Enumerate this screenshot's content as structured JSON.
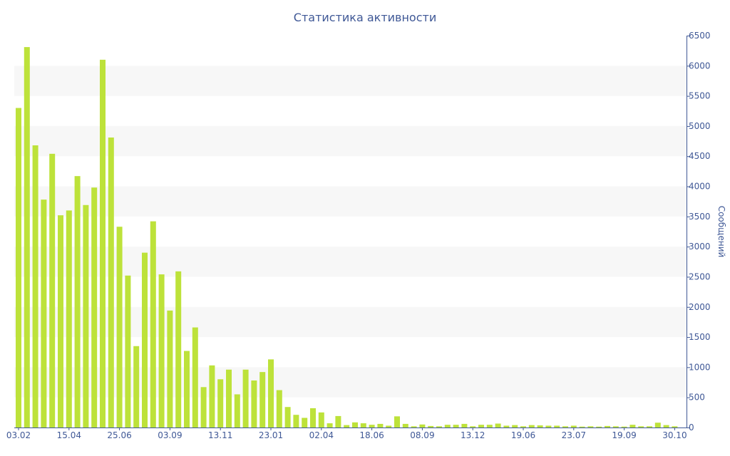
{
  "chart_data": {
    "type": "bar",
    "title": "Статистика активности",
    "xlabel": "",
    "ylabel": "Сообщений",
    "y_axis_side": "right",
    "ylim": [
      0,
      6500
    ],
    "yticks": [
      0,
      500,
      1000,
      1500,
      2000,
      2500,
      3000,
      3500,
      4000,
      4500,
      5000,
      5500,
      6000,
      6500
    ],
    "grid": "alternating horizontal bands",
    "x_tick_labels": [
      "03.02",
      "15.04",
      "25.06",
      "03.09",
      "13.11",
      "23.01",
      "02.04",
      "18.06",
      "08.09",
      "13.12",
      "19.06",
      "23.07",
      "19.09",
      "30.10"
    ],
    "values": [
      5300,
      6310,
      4680,
      3780,
      4540,
      3520,
      3600,
      4170,
      3690,
      3980,
      6100,
      4810,
      3330,
      2520,
      1350,
      2900,
      3420,
      2540,
      1940,
      2590,
      1270,
      1660,
      670,
      1030,
      800,
      960,
      550,
      960,
      780,
      920,
      1130,
      620,
      340,
      210,
      160,
      320,
      250,
      70,
      190,
      40,
      85,
      70,
      45,
      60,
      30,
      185,
      60,
      20,
      50,
      25,
      20,
      45,
      45,
      60,
      20,
      45,
      45,
      65,
      30,
      40,
      20,
      40,
      35,
      30,
      30,
      20,
      30,
      15,
      20,
      15,
      25,
      20,
      15,
      45,
      20,
      20,
      80,
      40,
      20
    ]
  },
  "colors": {
    "bar": "#bde23a",
    "band": "#f7f7f7",
    "text": "#3f5896",
    "axis": "#3f5896"
  }
}
